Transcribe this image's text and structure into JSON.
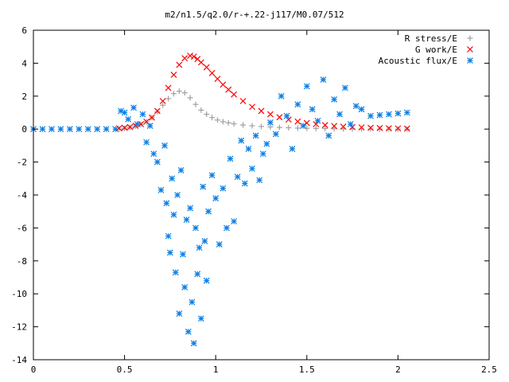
{
  "chart_data": {
    "type": "scatter",
    "title": "m2/n1.5/q2.0/r-+.22-j117/M0.07/512",
    "xlabel": "",
    "ylabel": "",
    "xlim": [
      0,
      2.5
    ],
    "ylim": [
      -14,
      6
    ],
    "x_ticks": [
      "0",
      "0.5",
      "1",
      "1.5",
      "2",
      "2.5"
    ],
    "y_ticks": [
      "6",
      "4",
      "2",
      "0",
      "-2",
      "-4",
      "-6",
      "-8",
      "-10",
      "-12",
      "-14"
    ],
    "grid": false,
    "legend_position": "top-right",
    "series": [
      {
        "name": "R stress/E",
        "marker": "plus",
        "color": "#a0a0a0",
        "x": [
          0.47,
          0.5,
          0.53,
          0.56,
          0.59,
          0.62,
          0.65,
          0.68,
          0.71,
          0.74,
          0.77,
          0.8,
          0.83,
          0.86,
          0.89,
          0.92,
          0.95,
          0.98,
          1.01,
          1.04,
          1.07,
          1.1,
          1.15,
          1.2,
          1.25,
          1.3,
          1.35,
          1.4,
          1.45,
          1.5,
          1.55,
          1.6,
          1.65,
          1.7,
          1.75,
          1.8,
          1.85,
          1.9,
          1.95,
          2.0,
          2.05
        ],
        "y": [
          0.0,
          0.05,
          0.1,
          0.18,
          0.28,
          0.45,
          0.7,
          1.05,
          1.45,
          1.85,
          2.15,
          2.3,
          2.2,
          1.9,
          1.5,
          1.15,
          0.9,
          0.7,
          0.55,
          0.45,
          0.38,
          0.32,
          0.25,
          0.2,
          0.16,
          0.13,
          0.1,
          0.08,
          0.06,
          0.05,
          0.04,
          0.03,
          0.02,
          0.015,
          0.01,
          0.01,
          0.0,
          0.0,
          0.0,
          0.0,
          0.0
        ]
      },
      {
        "name": "G work/E",
        "marker": "cross",
        "color": "#ff0000",
        "x": [
          0.47,
          0.5,
          0.53,
          0.56,
          0.59,
          0.62,
          0.65,
          0.68,
          0.71,
          0.74,
          0.77,
          0.8,
          0.83,
          0.86,
          0.88,
          0.9,
          0.92,
          0.95,
          0.98,
          1.01,
          1.04,
          1.07,
          1.1,
          1.15,
          1.2,
          1.25,
          1.3,
          1.35,
          1.4,
          1.45,
          1.5,
          1.55,
          1.6,
          1.65,
          1.7,
          1.75,
          1.8,
          1.85,
          1.9,
          1.95,
          2.0,
          2.05
        ],
        "y": [
          0.05,
          0.08,
          0.12,
          0.2,
          0.3,
          0.45,
          0.7,
          1.1,
          1.7,
          2.5,
          3.3,
          3.9,
          4.3,
          4.45,
          4.4,
          4.25,
          4.05,
          3.75,
          3.4,
          3.05,
          2.7,
          2.4,
          2.1,
          1.7,
          1.35,
          1.1,
          0.9,
          0.72,
          0.58,
          0.46,
          0.37,
          0.3,
          0.24,
          0.19,
          0.15,
          0.12,
          0.1,
          0.08,
          0.06,
          0.05,
          0.04,
          0.03
        ]
      },
      {
        "name": "Acoustic flux/E",
        "marker": "star",
        "color": "#0a7fe6",
        "x": [
          0.0,
          0.05,
          0.1,
          0.15,
          0.2,
          0.25,
          0.3,
          0.35,
          0.4,
          0.45,
          0.48,
          0.5,
          0.52,
          0.55,
          0.57,
          0.6,
          0.62,
          0.64,
          0.66,
          0.68,
          0.7,
          0.72,
          0.73,
          0.74,
          0.75,
          0.76,
          0.77,
          0.78,
          0.79,
          0.8,
          0.81,
          0.82,
          0.83,
          0.84,
          0.85,
          0.86,
          0.87,
          0.88,
          0.89,
          0.9,
          0.91,
          0.92,
          0.93,
          0.94,
          0.95,
          0.96,
          0.98,
          1.0,
          1.02,
          1.04,
          1.06,
          1.08,
          1.1,
          1.12,
          1.14,
          1.16,
          1.18,
          1.2,
          1.22,
          1.24,
          1.26,
          1.28,
          1.3,
          1.33,
          1.36,
          1.39,
          1.42,
          1.45,
          1.48,
          1.5,
          1.53,
          1.56,
          1.59,
          1.62,
          1.65,
          1.68,
          1.71,
          1.74,
          1.77,
          1.8,
          1.85,
          1.9,
          1.95,
          2.0,
          2.05
        ],
        "y": [
          0.0,
          0.0,
          0.0,
          0.0,
          0.0,
          0.0,
          0.0,
          0.0,
          0.0,
          0.0,
          1.1,
          1.0,
          0.6,
          1.3,
          0.3,
          0.9,
          -0.8,
          0.2,
          -1.5,
          -2.0,
          -3.7,
          -1.0,
          -4.5,
          -6.5,
          -7.5,
          -3.0,
          -5.2,
          -8.7,
          -4.0,
          -11.2,
          -2.5,
          -7.6,
          -9.6,
          -5.5,
          -12.3,
          -4.8,
          -10.5,
          -13.0,
          -6.0,
          -8.8,
          -7.2,
          -11.5,
          -3.5,
          -6.8,
          -9.2,
          -5.0,
          -2.8,
          -4.2,
          -7.0,
          -3.6,
          -6.0,
          -1.8,
          -5.6,
          -2.9,
          -0.7,
          -3.3,
          -1.2,
          -2.4,
          -0.4,
          -3.1,
          -1.5,
          -0.9,
          0.4,
          -0.3,
          2.0,
          0.8,
          -1.2,
          1.5,
          0.2,
          2.6,
          1.2,
          0.5,
          3.0,
          -0.4,
          1.8,
          0.9,
          2.5,
          0.3,
          1.4,
          1.2,
          0.8,
          0.85,
          0.9,
          0.95,
          1.0
        ]
      }
    ]
  }
}
